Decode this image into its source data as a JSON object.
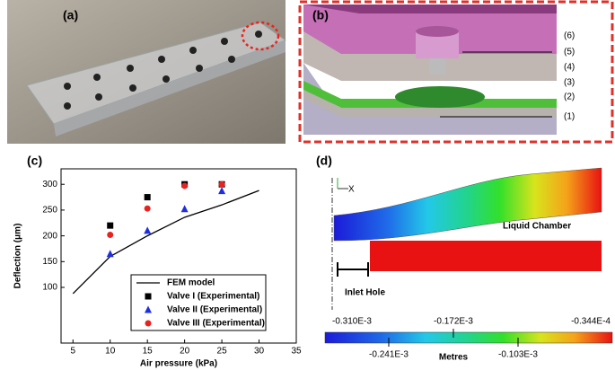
{
  "panel_labels": [
    "(a)",
    "(b)",
    "(c)",
    "(d)"
  ],
  "panel_b": {
    "layers": [
      "(6)",
      "(5)",
      "(4)",
      "(3)",
      "(2)",
      "(1)"
    ]
  },
  "chart_data": {
    "type": "scatter",
    "xlabel": "Air pressure (kPa)",
    "ylabel": "Deflection (μm)",
    "xlim": [
      3.4,
      35
    ],
    "xticks": [
      5,
      10,
      15,
      20,
      25,
      30,
      35
    ],
    "ylim": [
      -8,
      330
    ],
    "yticks": [
      100,
      150,
      200,
      250,
      300
    ],
    "series": [
      {
        "name": "FEM model",
        "color": "#000000",
        "marker": "line",
        "x": [
          5,
          10,
          15,
          20,
          25,
          30
        ],
        "values": [
          88,
          160,
          200,
          236,
          260,
          288
        ]
      },
      {
        "name": "Valve I (Experimental)",
        "color": "#000000",
        "marker": "square",
        "x": [
          10,
          15,
          20,
          25
        ],
        "values": [
          220,
          275,
          300,
          300
        ]
      },
      {
        "name": "Valve II (Experimental)",
        "color": "#1f2fe0",
        "marker": "triangle",
        "x": [
          10,
          15,
          20,
          25
        ],
        "values": [
          165,
          210,
          252,
          287
        ]
      },
      {
        "name": "Valve III (Experimental)",
        "color": "#e8231f",
        "marker": "circle",
        "x": [
          10,
          15,
          20,
          25
        ],
        "values": [
          202,
          253,
          297,
          300
        ]
      }
    ]
  },
  "panel_d": {
    "axis_label": "X",
    "chamber_label": "Liquid Chamber",
    "hole_label": "Inlet Hole",
    "colorbar_top": [
      "-0.310E-3",
      "-0.172E-3",
      "-0.344E-4"
    ],
    "colorbar_bottom": [
      "-0.241E-3",
      "-0.103E-3"
    ],
    "unit": "Metres"
  }
}
